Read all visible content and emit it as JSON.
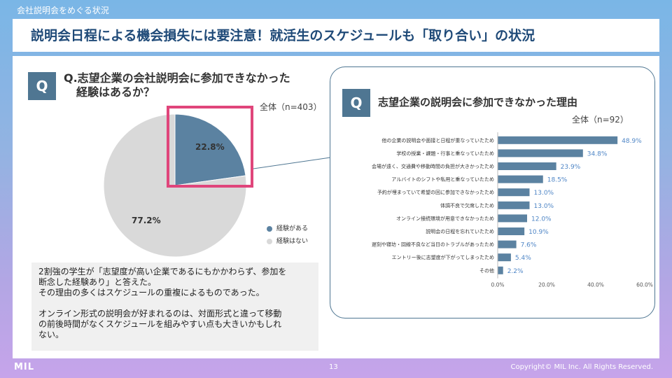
{
  "header": {
    "section": "会社説明会をめぐる状況",
    "title": "説明会日程による機会損失には要注意！就活生のスケジュールも「取り合い」の状況"
  },
  "left": {
    "badge": "Q",
    "question_line1": "Q.志望企業の会社説明会に参加できなかった",
    "question_line2": "経験はあるか？",
    "sample": "全体（n=403）",
    "pie_labels": {
      "yes": "22.8%",
      "no": "77.2%"
    },
    "legend": [
      {
        "label": "経験がある",
        "color": "#5b82a1"
      },
      {
        "label": "経験はない",
        "color": "#d9d9d9"
      }
    ],
    "note_p1": "2割強の学生が「志望度が高い企業であるにもかかわらず、参加を\n断念した経験あり」と答えた。\nその理由の多くはスケジュールの重複によるものであった。",
    "note_p2": "オンライン形式の説明会が好まれるのは、対面形式と違って移動\nの前後時間がなくスケジュールを組みやすい点も大きいかもしれ\nない。"
  },
  "right": {
    "badge": "Q",
    "title": "志望企業の説明会に参加できなかった理由",
    "sample": "全体（n=92）"
  },
  "chart_data": [
    {
      "type": "pie",
      "categories": [
        "経験がある",
        "経験はない"
      ],
      "values": [
        22.8,
        77.2
      ],
      "colors": [
        "#5b82a1",
        "#d9d9d9"
      ]
    },
    {
      "type": "bar",
      "orientation": "horizontal",
      "categories": [
        "他の企業の説明会や面接と日程が重なっていたため",
        "学校の授業・課題・行事と重なっていたため",
        "会場が遠く、交通費や移動時間の負担が大きかったため",
        "アルバイトのシフトや私用と重なっていたため",
        "予約が埋まっていて希望の回に参加できなかったため",
        "体調不良で欠席したため",
        "オンライン接続環境が用意できなかったため",
        "説明会の日程を忘れていたため",
        "遅刻や寝坊・回線不良など当日のトラブルがあったため",
        "エントリー後に志望度が下がってしまったため",
        "その他"
      ],
      "values": [
        48.9,
        34.8,
        23.9,
        18.5,
        13.0,
        13.0,
        12.0,
        10.9,
        7.6,
        5.4,
        2.2
      ],
      "value_labels": [
        "48.9%",
        "34.8%",
        "23.9%",
        "18.5%",
        "13.0%",
        "13.0%",
        "12.0%",
        "10.9%",
        "7.6%",
        "5.4%",
        "2.2%"
      ],
      "xticks": [
        "0.0%",
        "20.0%",
        "40.0%",
        "60.0%"
      ],
      "xlim": [
        0,
        60
      ],
      "color": "#5b82a1",
      "label_color": "#4f86c6"
    }
  ],
  "footer": {
    "logo": "MIL",
    "page": "13",
    "copyright": "Copyright© MIL Inc. All Rights Reserved."
  }
}
